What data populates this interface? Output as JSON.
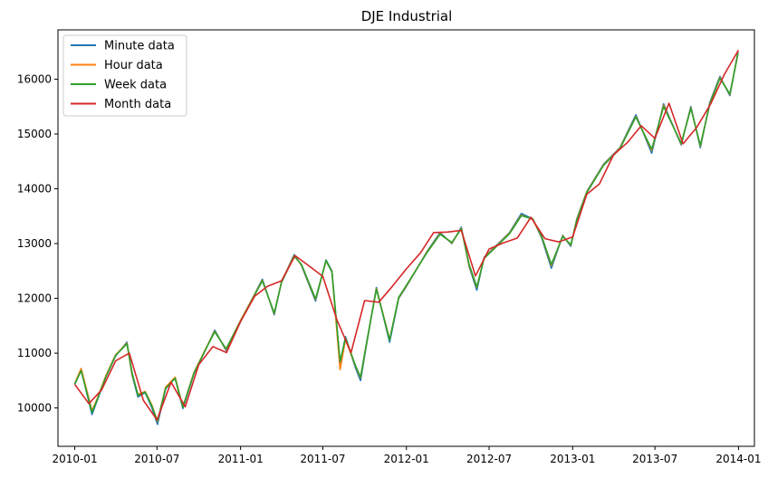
{
  "chart_data": {
    "type": "line",
    "title": "DJE Industrial",
    "xlabel": "",
    "ylabel": "",
    "x_range": [
      "2009-11-25",
      "2014-02-05"
    ],
    "ylim": [
      9300,
      16900
    ],
    "x_ticks": [
      "2010-01",
      "2010-07",
      "2011-01",
      "2011-07",
      "2012-01",
      "2012-07",
      "2013-01",
      "2013-07",
      "2014-01"
    ],
    "y_ticks": [
      10000,
      11000,
      12000,
      13000,
      14000,
      15000,
      16000
    ],
    "grid": false,
    "legend_position": "top-left",
    "colors": {
      "Minute data": "#1f77b4",
      "Hour data": "#ff7f0e",
      "Week data": "#2ca02c",
      "Month data": "#d62728"
    },
    "series": [
      {
        "name": "Minute data",
        "x": [
          "2010-01-01",
          "2010-01-15",
          "2010-02-08",
          "2010-02-20",
          "2010-03-10",
          "2010-04-01",
          "2010-04-26",
          "2010-05-07",
          "2010-05-20",
          "2010-06-05",
          "2010-06-20",
          "2010-07-02",
          "2010-07-20",
          "2010-08-10",
          "2010-08-27",
          "2010-09-20",
          "2010-10-15",
          "2010-11-05",
          "2010-11-30",
          "2011-01-01",
          "2011-02-18",
          "2011-03-16",
          "2011-04-01",
          "2011-04-29",
          "2011-05-15",
          "2011-06-15",
          "2011-07-08",
          "2011-07-21",
          "2011-08-08",
          "2011-08-20",
          "2011-09-10",
          "2011-09-22",
          "2011-10-04",
          "2011-10-27",
          "2011-11-25",
          "2011-12-15",
          "2012-01-01",
          "2012-02-15",
          "2012-03-15",
          "2012-04-10",
          "2012-05-01",
          "2012-05-18",
          "2012-06-04",
          "2012-06-20",
          "2012-07-15",
          "2012-08-15",
          "2012-09-10",
          "2012-10-05",
          "2012-10-25",
          "2012-11-15",
          "2012-12-10",
          "2012-12-28",
          "2013-01-10",
          "2013-02-01",
          "2013-03-10",
          "2013-04-15",
          "2013-05-20",
          "2013-06-24",
          "2013-07-20",
          "2013-08-28",
          "2013-09-18",
          "2013-10-09",
          "2013-10-30",
          "2013-11-21",
          "2013-12-13",
          "2013-12-31"
        ],
        "values": [
          10430,
          10700,
          9880,
          10150,
          10560,
          10950,
          11200,
          10600,
          10200,
          10280,
          10000,
          9700,
          10350,
          10550,
          9990,
          10620,
          11050,
          11420,
          11050,
          11580,
          12350,
          11700,
          12300,
          12800,
          12600,
          11950,
          12700,
          12500,
          10800,
          11300,
          10750,
          10500,
          11100,
          12200,
          11200,
          12000,
          12220,
          12850,
          13200,
          13000,
          13300,
          12580,
          12150,
          12750,
          12950,
          13200,
          13550,
          13450,
          13100,
          12550,
          13150,
          12950,
          13450,
          13950,
          14450,
          14750,
          15350,
          14650,
          15550,
          14800,
          15500,
          14750,
          15580,
          16050,
          15700,
          16500
        ]
      },
      {
        "name": "Hour data",
        "x": [
          "2010-01-01",
          "2010-01-15",
          "2010-02-08",
          "2010-02-20",
          "2010-03-10",
          "2010-04-01",
          "2010-04-26",
          "2010-05-07",
          "2010-05-20",
          "2010-06-05",
          "2010-06-20",
          "2010-07-02",
          "2010-07-20",
          "2010-08-10",
          "2010-08-27",
          "2010-09-20",
          "2010-10-15",
          "2010-11-05",
          "2010-11-30",
          "2011-01-01",
          "2011-02-18",
          "2011-03-16",
          "2011-04-01",
          "2011-04-29",
          "2011-05-15",
          "2011-06-15",
          "2011-07-08",
          "2011-07-21",
          "2011-08-08",
          "2011-08-20",
          "2011-09-10",
          "2011-09-22",
          "2011-10-04",
          "2011-10-27",
          "2011-11-25",
          "2011-12-15",
          "2012-01-01",
          "2012-02-15",
          "2012-03-15",
          "2012-04-10",
          "2012-05-01",
          "2012-05-18",
          "2012-06-04",
          "2012-06-20",
          "2012-07-15",
          "2012-08-15",
          "2012-09-10",
          "2012-10-05",
          "2012-10-25",
          "2012-11-15",
          "2012-12-10",
          "2012-12-28",
          "2013-01-10",
          "2013-02-01",
          "2013-03-10",
          "2013-04-15",
          "2013-05-20",
          "2013-06-24",
          "2013-07-20",
          "2013-08-28",
          "2013-09-18",
          "2013-10-09",
          "2013-10-30",
          "2013-11-21",
          "2013-12-13",
          "2013-12-31"
        ],
        "values": [
          10450,
          10720,
          9950,
          10180,
          10580,
          10970,
          11180,
          10620,
          10250,
          10300,
          10050,
          9750,
          10380,
          10560,
          10020,
          10640,
          11060,
          11400,
          11070,
          11600,
          12330,
          11720,
          12300,
          12780,
          12610,
          11980,
          12680,
          12490,
          10700,
          11250,
          10780,
          10550,
          11120,
          12180,
          11250,
          12010,
          12230,
          12840,
          13180,
          13010,
          13280,
          12600,
          12200,
          12740,
          12940,
          13190,
          13520,
          13440,
          13120,
          12600,
          13140,
          12970,
          13440,
          13940,
          14440,
          14740,
          15320,
          14700,
          15520,
          14820,
          15480,
          14780,
          15560,
          16030,
          15720,
          16480
        ]
      },
      {
        "name": "Week data",
        "x": [
          "2010-01-01",
          "2010-01-15",
          "2010-02-08",
          "2010-02-20",
          "2010-03-10",
          "2010-04-01",
          "2010-04-26",
          "2010-05-07",
          "2010-05-20",
          "2010-06-05",
          "2010-06-20",
          "2010-07-02",
          "2010-07-20",
          "2010-08-10",
          "2010-08-27",
          "2010-09-20",
          "2010-10-15",
          "2010-11-05",
          "2010-11-30",
          "2011-01-01",
          "2011-02-18",
          "2011-03-16",
          "2011-04-01",
          "2011-04-29",
          "2011-05-15",
          "2011-06-15",
          "2011-07-08",
          "2011-07-21",
          "2011-08-08",
          "2011-08-20",
          "2011-09-10",
          "2011-09-22",
          "2011-10-04",
          "2011-10-27",
          "2011-11-25",
          "2011-12-15",
          "2012-01-01",
          "2012-02-15",
          "2012-03-15",
          "2012-04-10",
          "2012-05-01",
          "2012-05-18",
          "2012-06-04",
          "2012-06-20",
          "2012-07-15",
          "2012-08-15",
          "2012-09-10",
          "2012-10-05",
          "2012-10-25",
          "2012-11-15",
          "2012-12-10",
          "2012-12-28",
          "2013-01-10",
          "2013-02-01",
          "2013-03-10",
          "2013-04-15",
          "2013-05-20",
          "2013-06-24",
          "2013-07-20",
          "2013-08-28",
          "2013-09-18",
          "2013-10-09",
          "2013-10-30",
          "2013-11-21",
          "2013-12-13",
          "2013-12-31"
        ],
        "values": [
          10440,
          10680,
          9920,
          10160,
          10560,
          10960,
          11170,
          10650,
          10230,
          10290,
          10030,
          9760,
          10360,
          10540,
          10010,
          10630,
          11050,
          11390,
          11080,
          11590,
          12320,
          11730,
          12290,
          12770,
          12620,
          11990,
          12690,
          12480,
          10850,
          11280,
          10790,
          10560,
          11130,
          12170,
          11240,
          12020,
          12240,
          12830,
          13170,
          13020,
          13270,
          12620,
          12210,
          12730,
          12930,
          13180,
          13510,
          13450,
          13130,
          12620,
          13130,
          12980,
          13430,
          13930,
          14430,
          14730,
          15310,
          14720,
          15500,
          14830,
          15470,
          14790,
          15550,
          16020,
          15730,
          16470
        ]
      },
      {
        "name": "Month data",
        "x": [
          "2010-01-01",
          "2010-02-01",
          "2010-03-01",
          "2010-04-01",
          "2010-05-01",
          "2010-06-01",
          "2010-07-01",
          "2010-08-01",
          "2010-09-01",
          "2010-10-01",
          "2010-11-01",
          "2010-12-01",
          "2011-01-01",
          "2011-02-01",
          "2011-03-01",
          "2011-04-01",
          "2011-05-01",
          "2011-06-01",
          "2011-07-01",
          "2011-08-01",
          "2011-09-01",
          "2011-10-01",
          "2011-11-01",
          "2011-12-01",
          "2012-01-01",
          "2012-02-01",
          "2012-03-01",
          "2012-04-01",
          "2012-05-01",
          "2012-06-01",
          "2012-07-01",
          "2012-08-01",
          "2012-09-01",
          "2012-10-01",
          "2012-11-01",
          "2012-12-01",
          "2013-01-01",
          "2013-02-01",
          "2013-03-01",
          "2013-04-01",
          "2013-05-01",
          "2013-06-01",
          "2013-07-01",
          "2013-08-01",
          "2013-09-01",
          "2013-10-01",
          "2013-11-01",
          "2013-12-01",
          "2014-01-01"
        ],
        "values": [
          10430,
          10080,
          10330,
          10860,
          11000,
          10140,
          9780,
          10470,
          10020,
          10790,
          11120,
          11010,
          11580,
          12040,
          12220,
          12320,
          12780,
          12590,
          12400,
          11610,
          11010,
          11960,
          11930,
          12220,
          12540,
          12830,
          13200,
          13210,
          13240,
          12410,
          12900,
          13010,
          13100,
          13480,
          13090,
          13030,
          13120,
          13900,
          14090,
          14620,
          14840,
          15150,
          14920,
          15560,
          14820,
          15120,
          15550,
          16090,
          16530
        ]
      }
    ]
  }
}
